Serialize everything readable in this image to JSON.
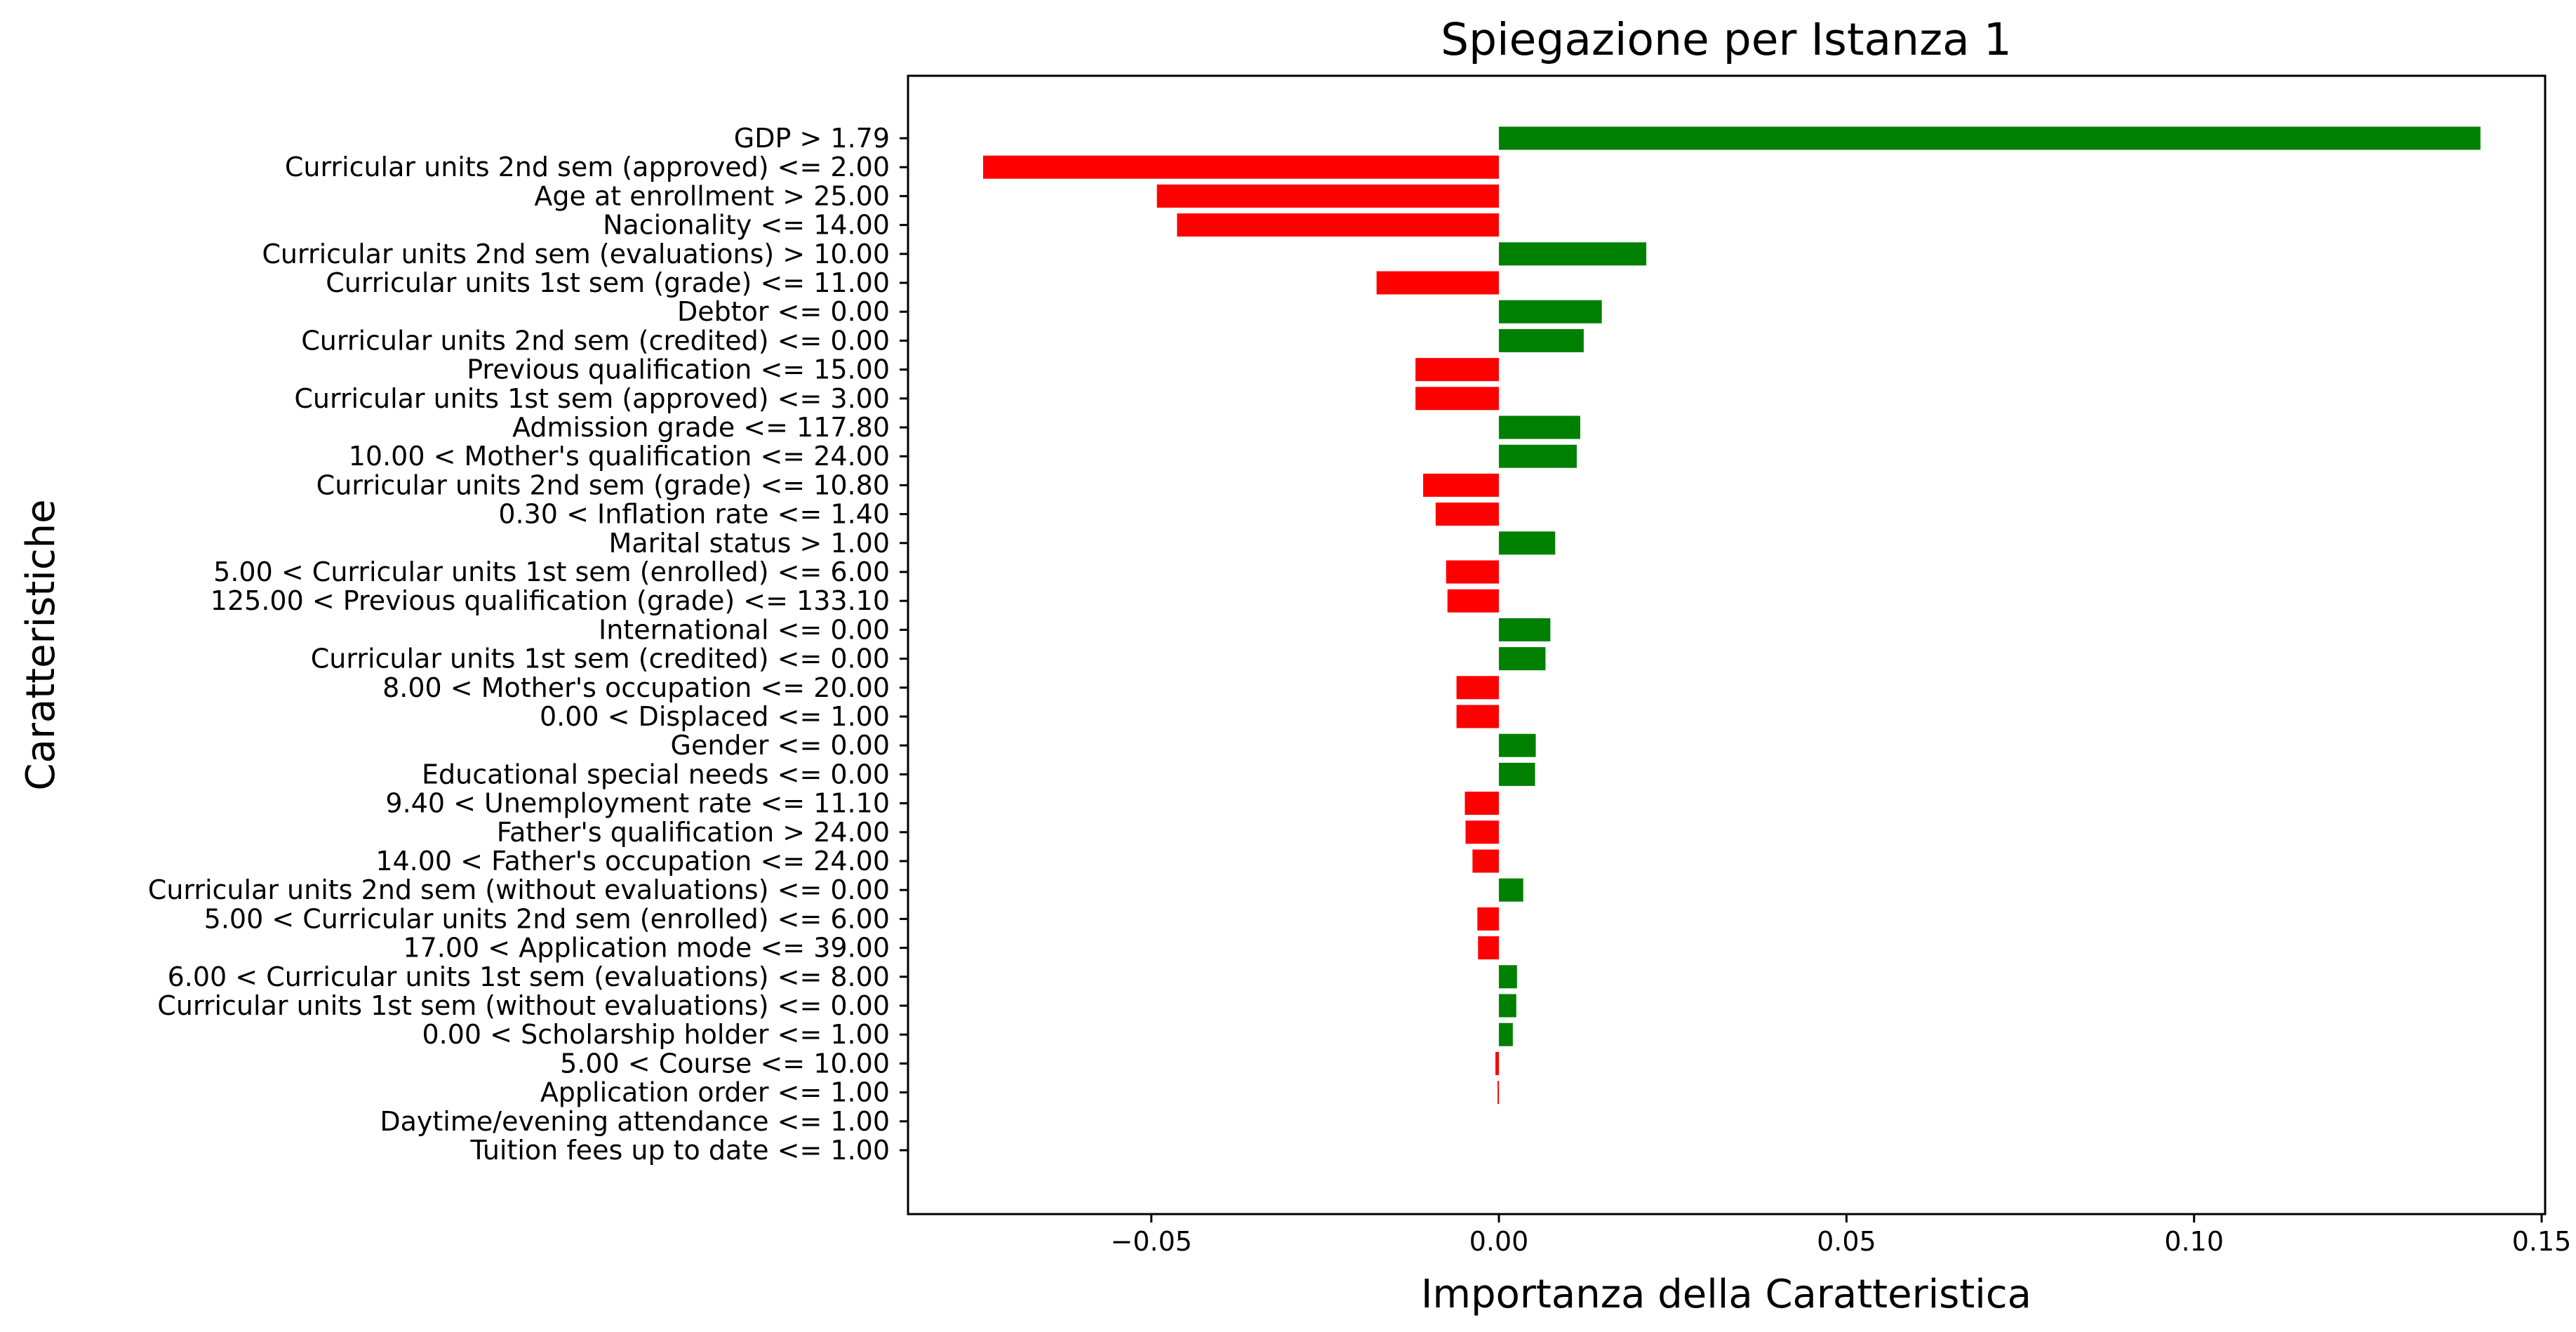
{
  "chart_data": {
    "type": "bar",
    "orientation": "horizontal",
    "title": "Spiegazione per Istanza 1",
    "xlabel": "Importanza della Caratteristica",
    "ylabel": "Caratteristiche",
    "xlim": [
      -0.085,
      0.1505
    ],
    "xticks": [
      -0.05,
      0.0,
      0.05,
      0.1,
      0.15
    ],
    "xtick_labels": [
      "−0.05",
      "0.00",
      "0.05",
      "0.10",
      "0.15"
    ],
    "grid": false,
    "colors": {
      "positive": "#008000",
      "negative": "#ff0000"
    },
    "categories": [
      "GDP > 1.79",
      "Curricular units 2nd sem (approved) <= 2.00",
      "Age at enrollment > 25.00",
      "Nacionality <= 14.00",
      "Curricular units 2nd sem (evaluations) > 10.00",
      "Curricular units 1st sem (grade) <= 11.00",
      "Debtor <= 0.00",
      "Curricular units 2nd sem (credited) <= 0.00",
      "Previous qualification <= 15.00",
      "Curricular units 1st sem (approved) <= 3.00",
      "Admission grade <= 117.80",
      "10.00 < Mother's qualification <= 24.00",
      "Curricular units 2nd sem (grade) <= 10.80",
      "0.30 < Inflation rate <= 1.40",
      "Marital status > 1.00",
      "5.00 < Curricular units 1st sem (enrolled) <= 6.00",
      "125.00 < Previous qualification (grade) <= 133.10",
      "International <= 0.00",
      "Curricular units 1st sem (credited) <= 0.00",
      "8.00 < Mother's occupation <= 20.00",
      "0.00 < Displaced <= 1.00",
      "Gender <= 0.00",
      "Educational special needs <= 0.00",
      "9.40 < Unemployment rate <= 11.10",
      "Father's qualification > 24.00",
      "14.00 < Father's occupation <= 24.00",
      "Curricular units 2nd sem (without evaluations) <= 0.00",
      "5.00 < Curricular units 2nd sem (enrolled) <= 6.00",
      "17.00 < Application mode <= 39.00",
      "6.00 < Curricular units 1st sem (evaluations) <= 8.00",
      "Curricular units 1st sem (without evaluations) <= 0.00",
      "0.00 < Scholarship holder <= 1.00",
      "5.00 < Course <= 10.00",
      "Application order <= 1.00",
      "Daytime/evening attendance\t <= 1.00",
      "Tuition fees up to date <= 1.00"
    ],
    "values": [
      0.1412,
      -0.0742,
      -0.0492,
      -0.0463,
      0.0212,
      -0.0176,
      0.0148,
      0.0122,
      -0.012,
      -0.012,
      0.0117,
      0.0112,
      -0.0109,
      -0.0091,
      0.0081,
      -0.0076,
      -0.0074,
      0.0074,
      0.0067,
      -0.0061,
      -0.0061,
      0.0053,
      0.0052,
      -0.0049,
      -0.0048,
      -0.0038,
      0.0035,
      -0.0031,
      -0.003,
      0.0026,
      0.0025,
      0.002,
      -0.0005,
      -0.0002,
      0.0,
      0.0
    ]
  }
}
